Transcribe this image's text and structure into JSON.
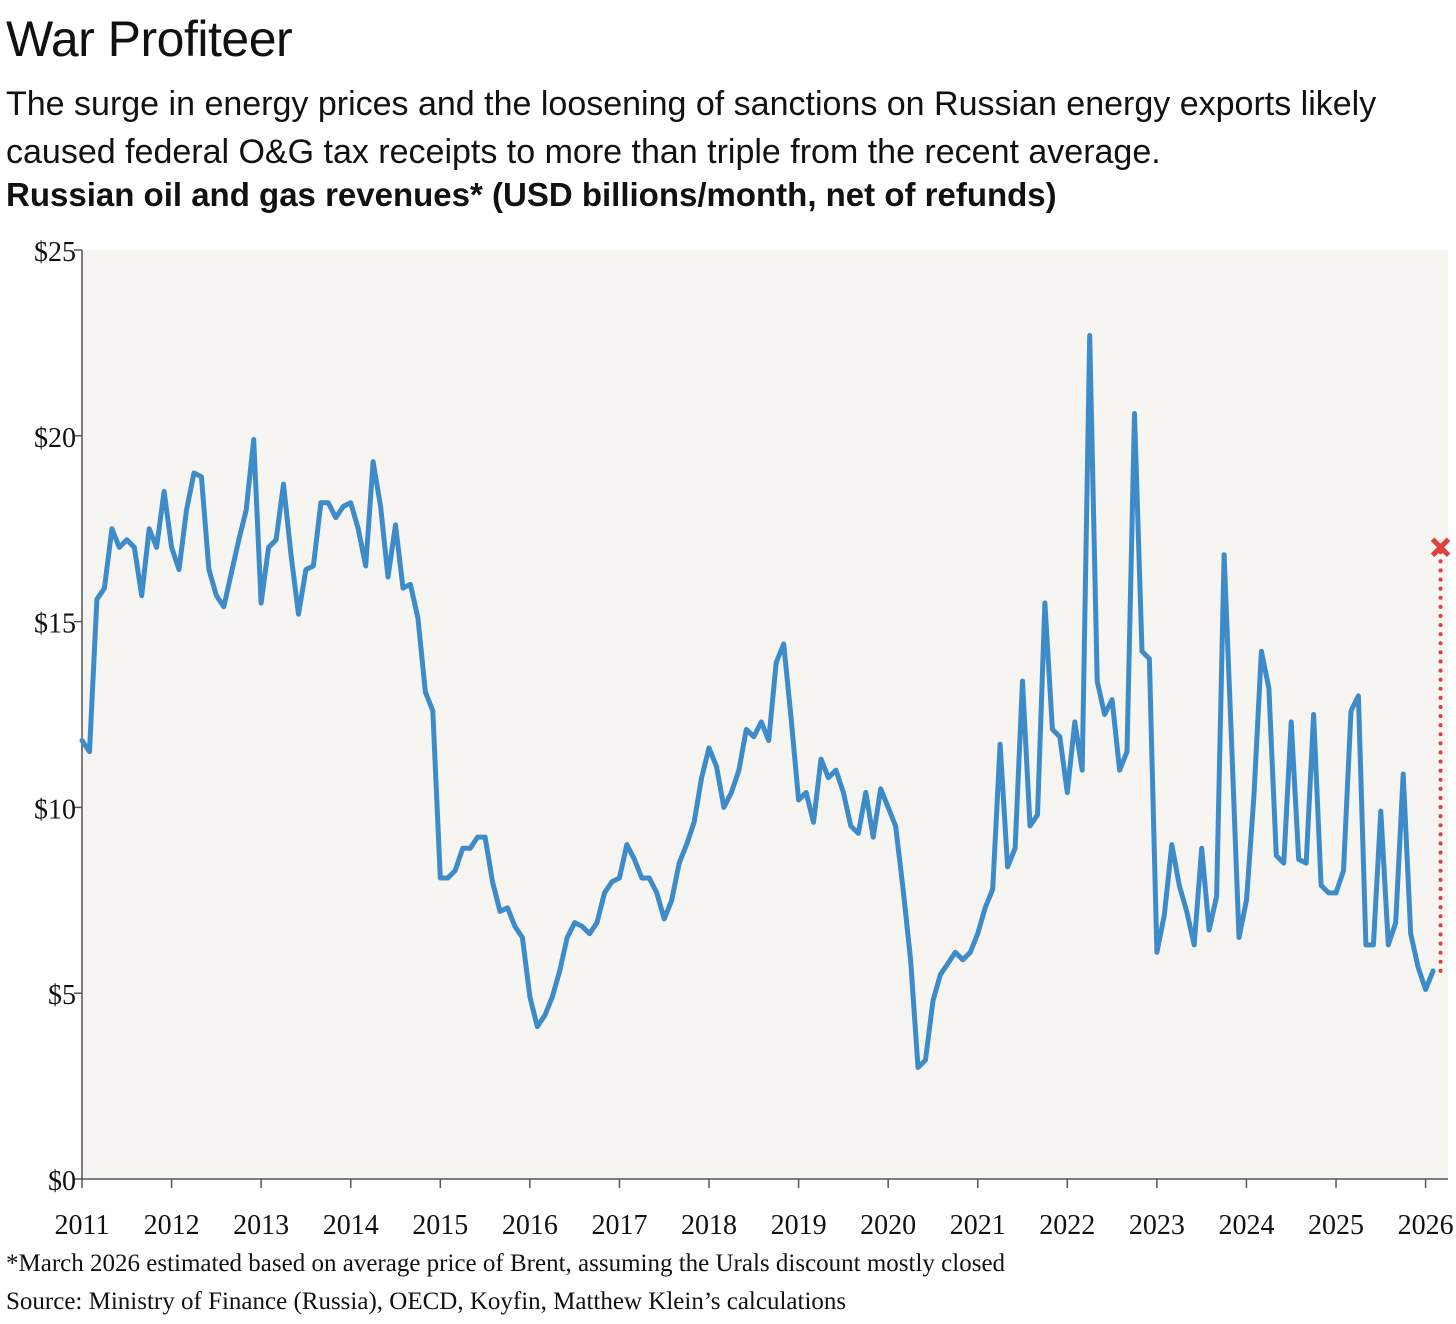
{
  "title": "War Profiteer",
  "subtitle": "The surge in energy prices and the loosening of sanctions on Russian energy exports likely caused federal O&G tax receipts to more than triple from the recent average.",
  "chart_heading": "Russian oil and gas revenues* (USD billions/month, net of refunds)",
  "footnote": "*March 2026 estimated based on average price of Brent, assuming the Urals discount mostly closed",
  "source": "Source: Ministry of Finance (Russia), OECD, Koyfin, Matthew Klein’s calculations",
  "colors": {
    "line": "#3d8cc9",
    "estimate": "#e0403a",
    "plot_bg": "#f6f5f2",
    "axis": "#555555"
  },
  "chart_data": {
    "type": "line",
    "title": "Russian oil and gas revenues* (USD billions/month, net of refunds)",
    "xlabel": "",
    "ylabel": "",
    "xlim": [
      2011,
      2026.25
    ],
    "ylim": [
      0,
      25
    ],
    "grid": false,
    "x_ticks": [
      "2011",
      "2012",
      "2013",
      "2014",
      "2015",
      "2016",
      "2017",
      "2018",
      "2019",
      "2020",
      "2021",
      "2022",
      "2023",
      "2024",
      "2025",
      "2026"
    ],
    "y_ticks": [
      "$0",
      "$5",
      "$10",
      "$15",
      "$20",
      "$25"
    ],
    "y_tick_values": [
      0,
      5,
      10,
      15,
      20,
      25
    ],
    "series": [
      {
        "start": 2011.0,
        "step": 0.08333333,
        "values": [
          11.8,
          11.5,
          15.6,
          15.9,
          17.5,
          17.0,
          17.2,
          17.0,
          15.7,
          17.5,
          17.0,
          18.5,
          17.0,
          16.4,
          18.0,
          19.0,
          18.9,
          16.4,
          15.7,
          15.4,
          16.3,
          17.2,
          18.0,
          19.9,
          15.5,
          17.0,
          17.2,
          18.7,
          16.8,
          15.2,
          16.4,
          16.5,
          18.2,
          18.2,
          17.8,
          18.1,
          18.2,
          17.5,
          16.5,
          19.3,
          18.1,
          16.2,
          17.6,
          15.9,
          16.0,
          15.1,
          13.1,
          12.6,
          8.1,
          8.1,
          8.3,
          8.9,
          8.9,
          9.2,
          9.2,
          8.0,
          7.2,
          7.3,
          6.8,
          6.5,
          4.9,
          4.1,
          4.4,
          4.9,
          5.6,
          6.5,
          6.9,
          6.8,
          6.6,
          6.9,
          7.7,
          8.0,
          8.1,
          9.0,
          8.6,
          8.1,
          8.1,
          7.7,
          7.0,
          7.5,
          8.5,
          9.0,
          9.6,
          10.8,
          11.6,
          11.1,
          10.0,
          10.4,
          11.0,
          12.1,
          11.9,
          12.3,
          11.8,
          13.9,
          14.4,
          12.4,
          10.2,
          10.4,
          9.6,
          11.3,
          10.8,
          11.0,
          10.4,
          9.5,
          9.3,
          10.4,
          9.2,
          10.5,
          10.0,
          9.5,
          7.8,
          5.9,
          3.0,
          3.2,
          4.8,
          5.5,
          5.8,
          6.1,
          5.9,
          6.1,
          6.6,
          7.3,
          7.8,
          11.7,
          8.4,
          8.9,
          13.4,
          9.5,
          9.8,
          15.5,
          12.1,
          11.9,
          10.4,
          12.3,
          11.0,
          22.7,
          13.4,
          12.5,
          12.9,
          11.0,
          11.5,
          20.6,
          14.2,
          14.0,
          6.1,
          7.1,
          9.0,
          7.9,
          7.2,
          6.3,
          8.9,
          6.7,
          7.6,
          16.8,
          11.8,
          6.5,
          7.5,
          10.3,
          14.2,
          13.2,
          8.7,
          8.5,
          12.3,
          8.6,
          8.5,
          12.5,
          7.9,
          7.7,
          7.7,
          8.3,
          12.6,
          13.0,
          6.3,
          6.3,
          9.9,
          6.3,
          6.9,
          10.9,
          6.6,
          5.7,
          5.1,
          5.6
        ]
      }
    ],
    "estimate": {
      "x": 2026.1667,
      "from": 5.6,
      "value": 17.0,
      "marker": "x",
      "style": "dotted"
    }
  }
}
